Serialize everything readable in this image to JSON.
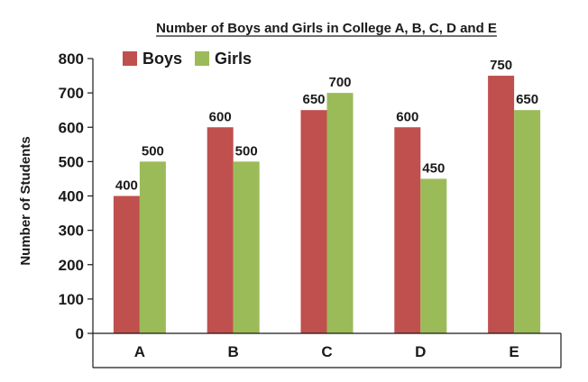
{
  "chart_data": {
    "type": "bar",
    "title": "Number of Boys and Girls in College A, B, C, D and E",
    "xlabel": "",
    "ylabel": "Number of Students",
    "categories": [
      "A",
      "B",
      "C",
      "D",
      "E"
    ],
    "series": [
      {
        "name": "Boys",
        "color": "#c0504d",
        "values": [
          400,
          600,
          650,
          600,
          750
        ]
      },
      {
        "name": "Girls",
        "color": "#9bbb59",
        "values": [
          500,
          500,
          700,
          450,
          650
        ]
      }
    ],
    "data_labels": {
      "Boys": [
        "400",
        "600",
        "650",
        "600",
        "750"
      ],
      "Girls": [
        "500",
        "500",
        "700",
        "450",
        "650"
      ]
    },
    "ylim": [
      0,
      800
    ],
    "yticks": [
      0,
      100,
      200,
      300,
      400,
      500,
      600,
      700,
      800
    ],
    "ytick_labels": [
      "0",
      "100",
      "200",
      "300",
      "400",
      "500",
      "600",
      "700",
      "800"
    ],
    "grid": false,
    "legend_position": "top-left"
  }
}
